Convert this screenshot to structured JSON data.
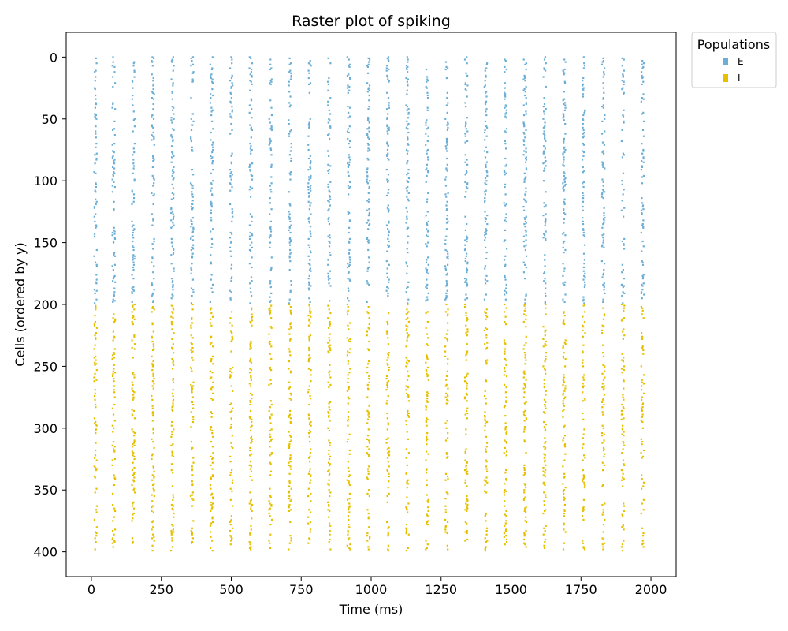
{
  "chart_data": {
    "type": "scatter",
    "title": "Raster plot of spiking",
    "xlabel": "Time (ms)",
    "ylabel": "Cells (ordered by y)",
    "xlim": [
      -90,
      2090
    ],
    "ylim": [
      -20,
      420
    ],
    "y_inverted": true,
    "xticks": [
      0,
      250,
      500,
      750,
      1000,
      1250,
      1500,
      1750,
      2000
    ],
    "yticks": [
      0,
      50,
      100,
      150,
      200,
      250,
      300,
      350,
      400
    ],
    "grid": false,
    "legend": {
      "title": "Populations",
      "placement": "outside-top-right",
      "entries": [
        {
          "label": "E",
          "color": "#6baed6"
        },
        {
          "label": "I",
          "color": "#e6c000"
        }
      ]
    },
    "series": [
      {
        "name": "E",
        "color": "#6baed6",
        "cells": [
          0,
          199
        ]
      },
      {
        "name": "I",
        "color": "#e6c000",
        "cells": [
          200,
          399
        ]
      }
    ],
    "burst_times_ms": [
      15,
      80,
      150,
      220,
      290,
      360,
      430,
      500,
      570,
      640,
      710,
      780,
      850,
      920,
      990,
      1060,
      1130,
      1200,
      1270,
      1340,
      1410,
      1480,
      1550,
      1620,
      1690,
      1760,
      1830,
      1900,
      1970
    ],
    "burst_jitter_ms": 10
  }
}
